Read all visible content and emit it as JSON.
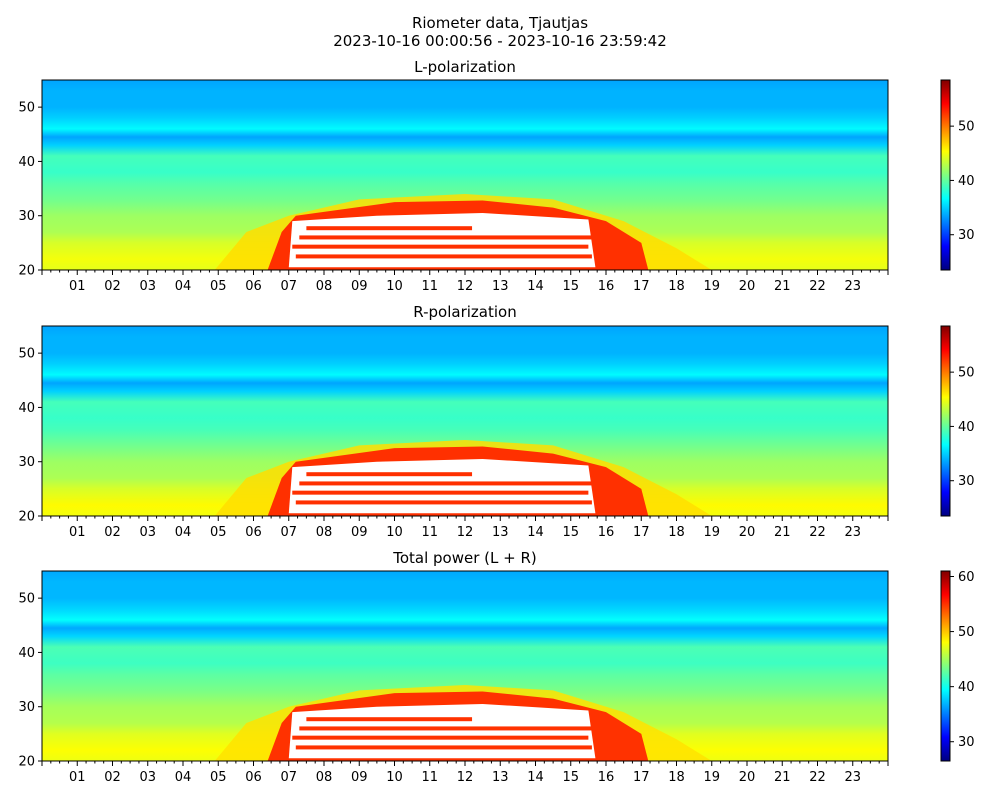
{
  "figure": {
    "title_line1": "Riometer data, Tjautjas",
    "title_line2": "2023-10-16 00:00:56 - 2023-10-16 23:59:42"
  },
  "colormap": [
    "#000080",
    "#0000ff",
    "#0080ff",
    "#00ffff",
    "#80ff80",
    "#ffff00",
    "#ff8000",
    "#ff0000",
    "#800000"
  ],
  "chart_data": [
    {
      "type": "heatmap",
      "title": "L-polarization",
      "x_tick_labels": [
        "01",
        "02",
        "03",
        "04",
        "05",
        "06",
        "07",
        "08",
        "09",
        "10",
        "11",
        "12",
        "13",
        "14",
        "15",
        "16",
        "17",
        "18",
        "19",
        "20",
        "21",
        "22",
        "23"
      ],
      "x_range_hours": [
        0,
        24
      ],
      "ylim": [
        20,
        55
      ],
      "y_ticks": [
        20,
        30,
        40,
        50
      ],
      "colorbar": {
        "range": [
          23.5,
          58.5
        ],
        "ticks": [
          30,
          40,
          50
        ]
      },
      "saturated_region": "white (values above colour range)",
      "background_profile": [
        [
          20,
          44.5
        ],
        [
          22,
          45
        ],
        [
          25,
          44
        ],
        [
          27,
          42.5
        ],
        [
          30,
          42
        ],
        [
          33,
          40.5
        ],
        [
          36,
          39.5
        ],
        [
          38,
          38.5
        ],
        [
          41,
          39
        ],
        [
          43,
          35
        ],
        [
          44.5,
          33.5
        ],
        [
          46,
          36.5
        ],
        [
          48,
          35
        ],
        [
          50,
          34
        ],
        [
          53,
          34
        ],
        [
          55,
          33.5
        ]
      ]
    },
    {
      "type": "heatmap",
      "title": "R-polarization",
      "x_tick_labels": [
        "01",
        "02",
        "03",
        "04",
        "05",
        "06",
        "07",
        "08",
        "09",
        "10",
        "11",
        "12",
        "13",
        "14",
        "15",
        "16",
        "17",
        "18",
        "19",
        "20",
        "21",
        "22",
        "23"
      ],
      "x_range_hours": [
        0,
        24
      ],
      "ylim": [
        20,
        55
      ],
      "y_ticks": [
        20,
        30,
        40,
        50
      ],
      "colorbar": {
        "range": [
          23.5,
          58.5
        ],
        "ticks": [
          30,
          40,
          50
        ]
      },
      "saturated_region": "white (values above colour range)",
      "background_profile": [
        [
          20,
          45
        ],
        [
          22,
          45.5
        ],
        [
          25,
          44
        ],
        [
          27,
          42.5
        ],
        [
          30,
          42
        ],
        [
          33,
          40.5
        ],
        [
          36,
          39
        ],
        [
          38,
          38.5
        ],
        [
          41,
          39
        ],
        [
          43,
          35
        ],
        [
          44.5,
          33.5
        ],
        [
          46,
          36.5
        ],
        [
          48,
          35
        ],
        [
          50,
          34
        ],
        [
          53,
          34
        ],
        [
          55,
          33.5
        ]
      ]
    },
    {
      "type": "heatmap",
      "title": "Total power (L + R)",
      "x_tick_labels": [
        "01",
        "02",
        "03",
        "04",
        "05",
        "06",
        "07",
        "08",
        "09",
        "10",
        "11",
        "12",
        "13",
        "14",
        "15",
        "16",
        "17",
        "18",
        "19",
        "20",
        "21",
        "22",
        "23"
      ],
      "x_range_hours": [
        0,
        24
      ],
      "ylim": [
        20,
        55
      ],
      "y_ticks": [
        20,
        30,
        40,
        50
      ],
      "colorbar": {
        "range": [
          26.5,
          61
        ],
        "ticks": [
          30,
          40,
          50,
          60
        ]
      },
      "saturated_region": "white (values above colour range)",
      "background_profile": [
        [
          20,
          47.5
        ],
        [
          22,
          48
        ],
        [
          25,
          47
        ],
        [
          27,
          45.5
        ],
        [
          30,
          45
        ],
        [
          33,
          43.5
        ],
        [
          36,
          42.5
        ],
        [
          38,
          41.5
        ],
        [
          41,
          42
        ],
        [
          43,
          38
        ],
        [
          44.5,
          36.5
        ],
        [
          46,
          39.5
        ],
        [
          48,
          38
        ],
        [
          50,
          37
        ],
        [
          53,
          37
        ],
        [
          55,
          36.5
        ]
      ]
    }
  ]
}
